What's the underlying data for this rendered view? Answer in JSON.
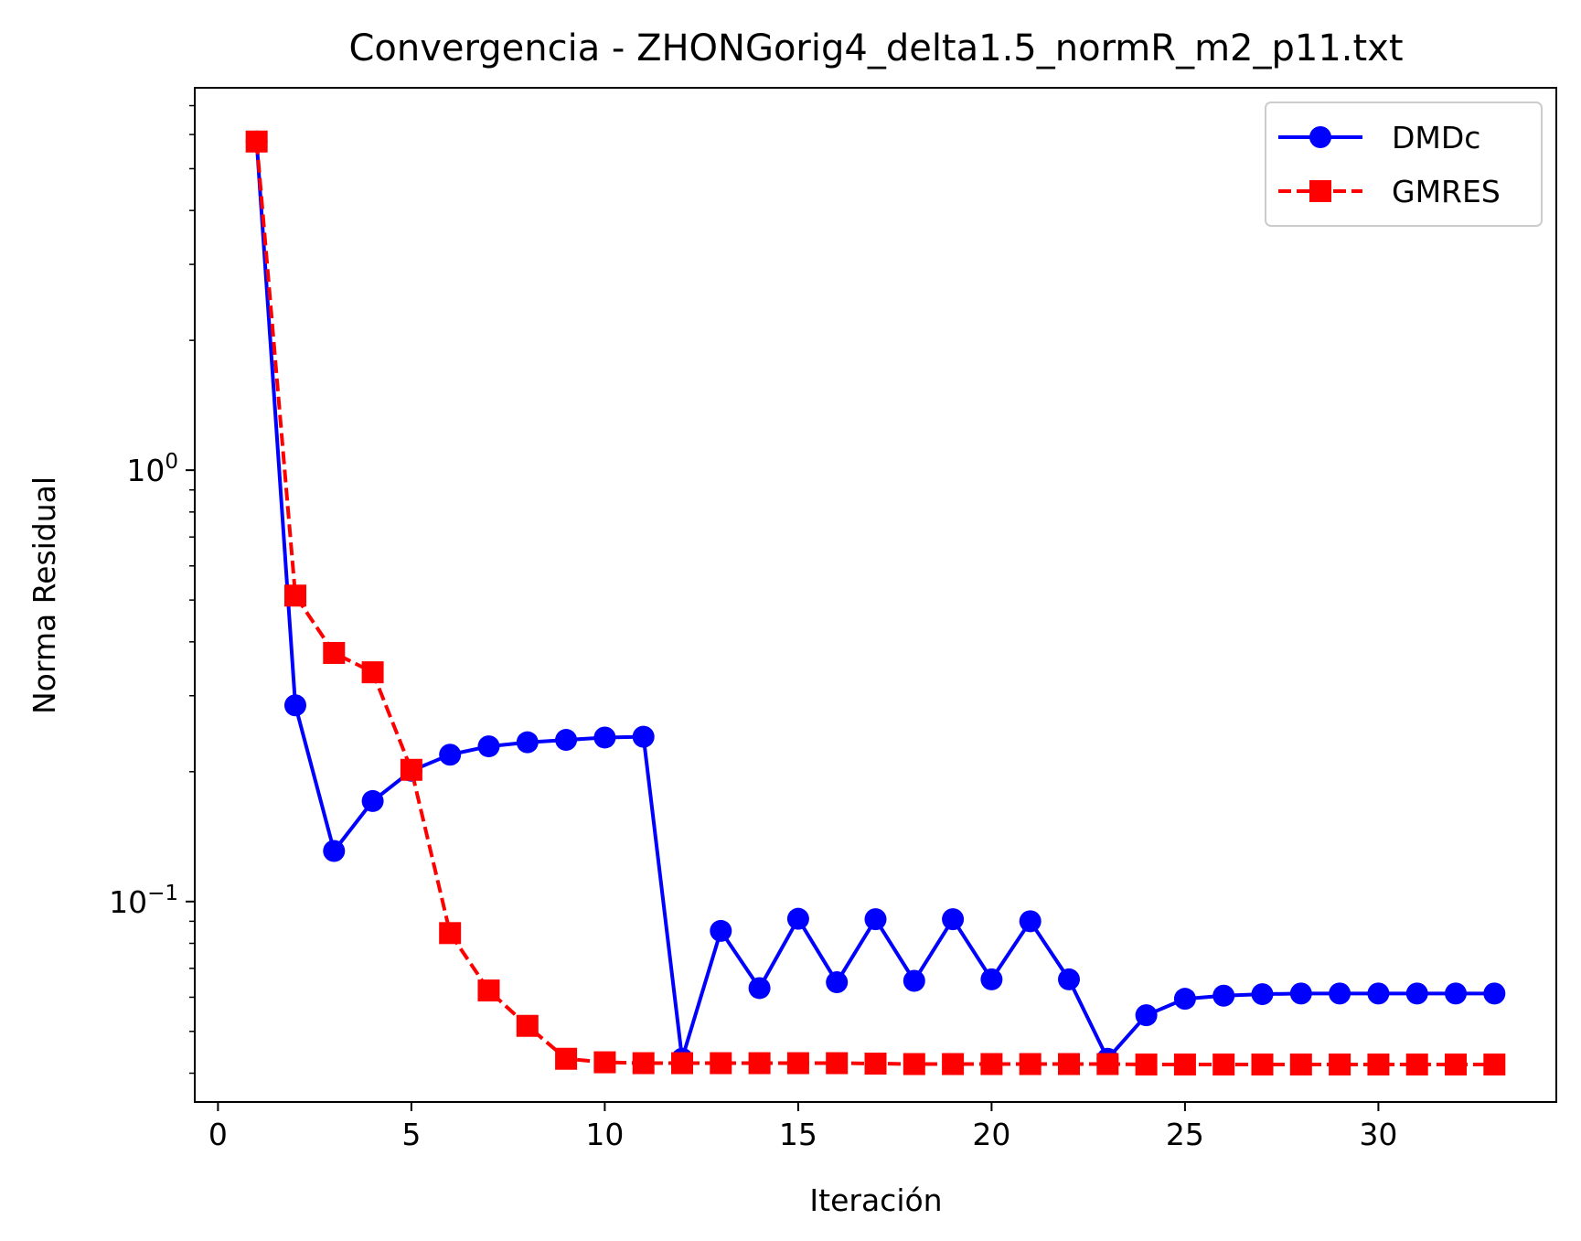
{
  "chart_data": {
    "type": "line",
    "title": "Convergencia - ZHONGorig4_delta1.5_normR_m2_p11.txt",
    "xlabel": "Iteración",
    "ylabel": "Norma Residual",
    "x_scale": "linear",
    "y_scale": "log",
    "xlim": [
      -0.6,
      34.6
    ],
    "ylim": [
      0.0343,
      7.7
    ],
    "x_ticks": [
      0,
      5,
      10,
      15,
      20,
      25,
      30
    ],
    "x_tick_labels": [
      "0",
      "5",
      "10",
      "15",
      "20",
      "25",
      "30"
    ],
    "y_major_ticks": [
      {
        "value": 1,
        "base": "10",
        "exp": "0"
      },
      {
        "value": 0.1,
        "base": "10",
        "exp": "−1"
      }
    ],
    "grid": false,
    "legend_position": "top-right",
    "x": [
      1,
      2,
      3,
      4,
      5,
      6,
      7,
      8,
      9,
      10,
      11,
      12,
      13,
      14,
      15,
      16,
      17,
      18,
      19,
      20,
      21,
      22,
      23,
      24,
      25,
      26,
      27,
      28,
      29,
      30,
      31,
      32,
      33
    ],
    "series": [
      {
        "name": "DMDc",
        "color": "#0000ff",
        "line_style": "solid",
        "marker": "circle",
        "values": [
          5.78,
          0.285,
          0.131,
          0.171,
          0.201,
          0.219,
          0.229,
          0.234,
          0.237,
          0.24,
          0.241,
          0.0432,
          0.0855,
          0.063,
          0.0912,
          0.065,
          0.091,
          0.0655,
          0.091,
          0.066,
          0.09,
          0.066,
          0.0432,
          0.0545,
          0.0595,
          0.0605,
          0.061,
          0.0612,
          0.0612,
          0.0612,
          0.0612,
          0.0612,
          0.0612
        ]
      },
      {
        "name": "GMRES",
        "color": "#ff0000",
        "line_style": "dashed",
        "marker": "square",
        "values": [
          5.78,
          0.512,
          0.377,
          0.34,
          0.202,
          0.0845,
          0.0622,
          0.0515,
          0.0432,
          0.0424,
          0.0422,
          0.0422,
          0.0422,
          0.0422,
          0.0422,
          0.0422,
          0.0421,
          0.042,
          0.042,
          0.042,
          0.042,
          0.042,
          0.042,
          0.0419,
          0.0419,
          0.0419,
          0.0419,
          0.0419,
          0.0419,
          0.0419,
          0.0419,
          0.0419,
          0.0419
        ]
      }
    ]
  }
}
